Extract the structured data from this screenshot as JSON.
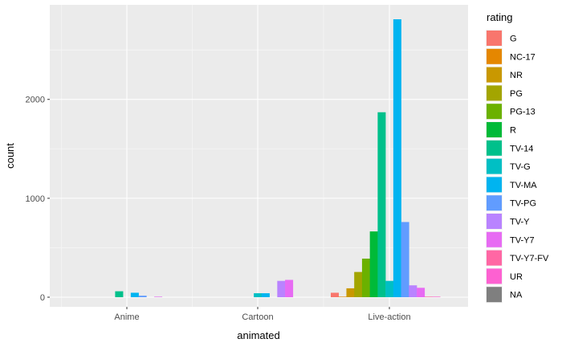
{
  "chart_data": {
    "type": "bar",
    "position": "dodge",
    "xlabel": "animated",
    "ylabel": "count",
    "categories": [
      "Anime",
      "Cartoon",
      "Live-action"
    ],
    "ylim": [
      0,
      2900
    ],
    "yticks": [
      0,
      1000,
      2000
    ],
    "legend": {
      "title": "rating",
      "placement": "right"
    },
    "series": [
      {
        "name": "G",
        "color": "#F8766D",
        "values": [
          0,
          0,
          45
        ]
      },
      {
        "name": "NC-17",
        "color": "#E58700",
        "values": [
          0,
          0,
          5
        ]
      },
      {
        "name": "NR",
        "color": "#C99800",
        "values": [
          0,
          0,
          90
        ]
      },
      {
        "name": "PG",
        "color": "#A3A500",
        "values": [
          0,
          0,
          255
        ]
      },
      {
        "name": "PG-13",
        "color": "#6BB100",
        "values": [
          0,
          0,
          390
        ]
      },
      {
        "name": "R",
        "color": "#00BA38",
        "values": [
          0,
          0,
          665
        ]
      },
      {
        "name": "TV-14",
        "color": "#00C08B",
        "values": [
          60,
          0,
          1870
        ]
      },
      {
        "name": "TV-G",
        "color": "#00BFC4",
        "values": [
          0,
          40,
          165
        ]
      },
      {
        "name": "TV-MA",
        "color": "#00B4F0",
        "values": [
          45,
          40,
          2810
        ]
      },
      {
        "name": "TV-PG",
        "color": "#619CFF",
        "values": [
          15,
          0,
          760
        ]
      },
      {
        "name": "TV-Y",
        "color": "#B983FF",
        "values": [
          0,
          165,
          120
        ]
      },
      {
        "name": "TV-Y7",
        "color": "#E76BF3",
        "values": [
          5,
          175,
          95
        ]
      },
      {
        "name": "TV-Y7-FV",
        "color": "#FF67A4",
        "values": [
          0,
          0,
          5
        ]
      },
      {
        "name": "UR",
        "color": "#FD61D1",
        "values": [
          0,
          0,
          5
        ]
      },
      {
        "name": "NA",
        "color": "#7F7F7F",
        "values": [
          0,
          0,
          0
        ]
      }
    ]
  }
}
